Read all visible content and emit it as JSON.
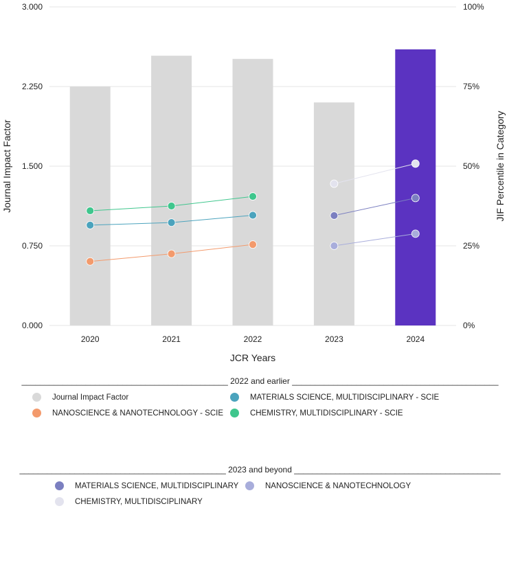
{
  "chart_data": {
    "type": "bar",
    "categories": [
      "2020",
      "2021",
      "2022",
      "2023",
      "2024"
    ],
    "xlabel": "JCR Years",
    "ylabel": "Journal Impact Factor",
    "ylabel_right": "JIF Percentile in Category",
    "ylim": [
      0,
      3.0
    ],
    "ylim_right": [
      0,
      100
    ],
    "yticks": [
      "0.000",
      "0.750",
      "1.500",
      "2.250",
      "3.000"
    ],
    "yticks_right": [
      "0%",
      "25%",
      "50%",
      "75%",
      "100%"
    ],
    "grid": true,
    "bars": {
      "name": "Journal Impact Factor",
      "values": [
        2.25,
        2.54,
        2.51,
        2.1,
        2.6
      ],
      "color": "#d9d9d9",
      "highlight_color": "#5b33c1",
      "highlight_index": 4
    },
    "series": [
      {
        "name": "MATERIALS SCIENCE, MULTIDISCIPLINARY - SCIE",
        "x": [
          "2020",
          "2021",
          "2022"
        ],
        "values": [
          31.5,
          32.3,
          34.6
        ],
        "color": "#4ba3bd"
      },
      {
        "name": "NANOSCIENCE & NANOTECHNOLOGY - SCIE",
        "x": [
          "2020",
          "2021",
          "2022"
        ],
        "values": [
          20.1,
          22.5,
          25.4
        ],
        "color": "#f39a6c"
      },
      {
        "name": "CHEMISTRY, MULTIDISCIPLINARY - SCIE",
        "x": [
          "2020",
          "2021",
          "2022"
        ],
        "values": [
          36.0,
          37.5,
          40.5
        ],
        "color": "#3fc68d"
      },
      {
        "name": "MATERIALS SCIENCE, MULTIDISCIPLINARY",
        "x": [
          "2023",
          "2024"
        ],
        "values": [
          34.5,
          40.0
        ],
        "color": "#7b7fc0"
      },
      {
        "name": "NANOSCIENCE & NANOTECHNOLOGY",
        "x": [
          "2023",
          "2024"
        ],
        "values": [
          25.0,
          28.8
        ],
        "color": "#a8addb"
      },
      {
        "name": "CHEMISTRY, MULTIDISCIPLINARY",
        "x": [
          "2023",
          "2024"
        ],
        "values": [
          44.5,
          50.8
        ],
        "color": "#e3e3ee"
      }
    ],
    "legend_groups": [
      {
        "heading": "_____________________________________________ 2022 and earlier _____________________________________________",
        "items": [
          {
            "label": "Journal Impact Factor",
            "color": "#d9d9d9"
          },
          {
            "label": "MATERIALS SCIENCE, MULTIDISCIPLINARY - SCIE",
            "color": "#4ba3bd"
          },
          {
            "label": "NANOSCIENCE & NANOTECHNOLOGY - SCIE",
            "color": "#f39a6c"
          },
          {
            "label": "CHEMISTRY, MULTIDISCIPLINARY - SCIE",
            "color": "#3fc68d"
          }
        ]
      },
      {
        "heading": "_____________________________________________ 2023 and beyond _____________________________________________",
        "items": [
          {
            "label": "MATERIALS SCIENCE, MULTIDISCIPLINARY",
            "color": "#7b7fc0"
          },
          {
            "label": "NANOSCIENCE & NANOTECHNOLOGY",
            "color": "#a8addb"
          },
          {
            "label": "CHEMISTRY, MULTIDISCIPLINARY",
            "color": "#e3e3ee"
          }
        ]
      }
    ]
  }
}
